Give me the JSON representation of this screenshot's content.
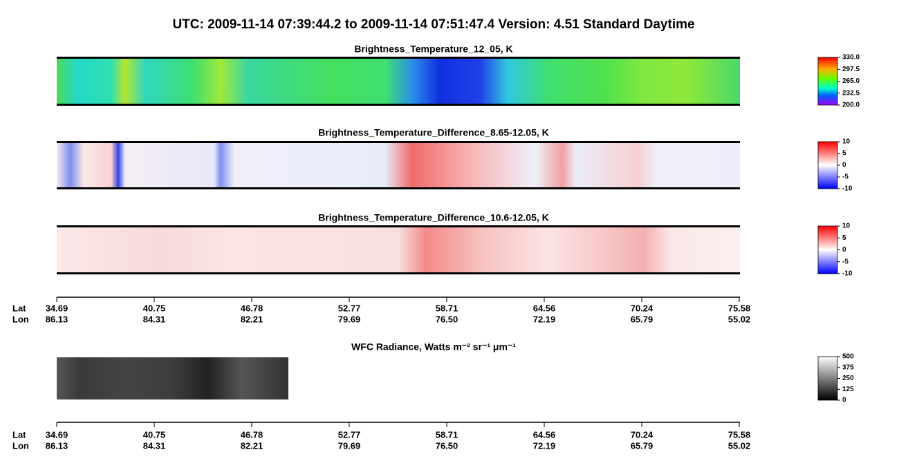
{
  "title": "UTC:  2009-11-14   07:39:44.2  to  2009-11-14   07:51:47.4    Version: 4.51  Standard Daytime",
  "panels": [
    {
      "title": "Brightness_Temperature_12_05, K",
      "colorbar": [
        {
          "value": 330,
          "label": "330.0"
        },
        {
          "value": 297.5,
          "label": "297.5"
        },
        {
          "value": 265,
          "label": "265.0"
        },
        {
          "value": 232.5,
          "label": "232.5"
        },
        {
          "value": 200,
          "label": "200.0"
        }
      ]
    },
    {
      "title": "Brightness_Temperature_Difference_8.65-12.05, K",
      "colorbar": [
        10,
        5,
        0,
        -5,
        -10
      ]
    },
    {
      "title": "Brightness_Temperature_Difference_10.6-12.05, K",
      "colorbar": [
        10,
        5,
        0,
        -5,
        -10
      ]
    },
    {
      "title": "WFC Radiance, Watts m⁻² sr⁻¹ μm⁻¹",
      "colorbar": [
        500,
        375,
        250,
        125,
        0
      ]
    }
  ],
  "axes": [
    {
      "lat_label": "Lat",
      "lon_label": "Lon",
      "lat": [
        "34.69",
        "40.75",
        "46.78",
        "52.77",
        "58.71",
        "64.56",
        "70.24",
        "75.58"
      ],
      "lon": [
        "86.13",
        "84.31",
        "82.21",
        "79.69",
        "76.50",
        "72.19",
        "65.79",
        "55.02"
      ]
    },
    {
      "lat_label": "Lat",
      "lon_label": "Lon",
      "lat": [
        "34.69",
        "40.75",
        "46.78",
        "52.77",
        "58.71",
        "64.56",
        "70.24",
        "75.58"
      ],
      "lon": [
        "86.13",
        "84.31",
        "82.21",
        "79.69",
        "76.50",
        "72.19",
        "65.79",
        "55.02"
      ]
    }
  ]
}
